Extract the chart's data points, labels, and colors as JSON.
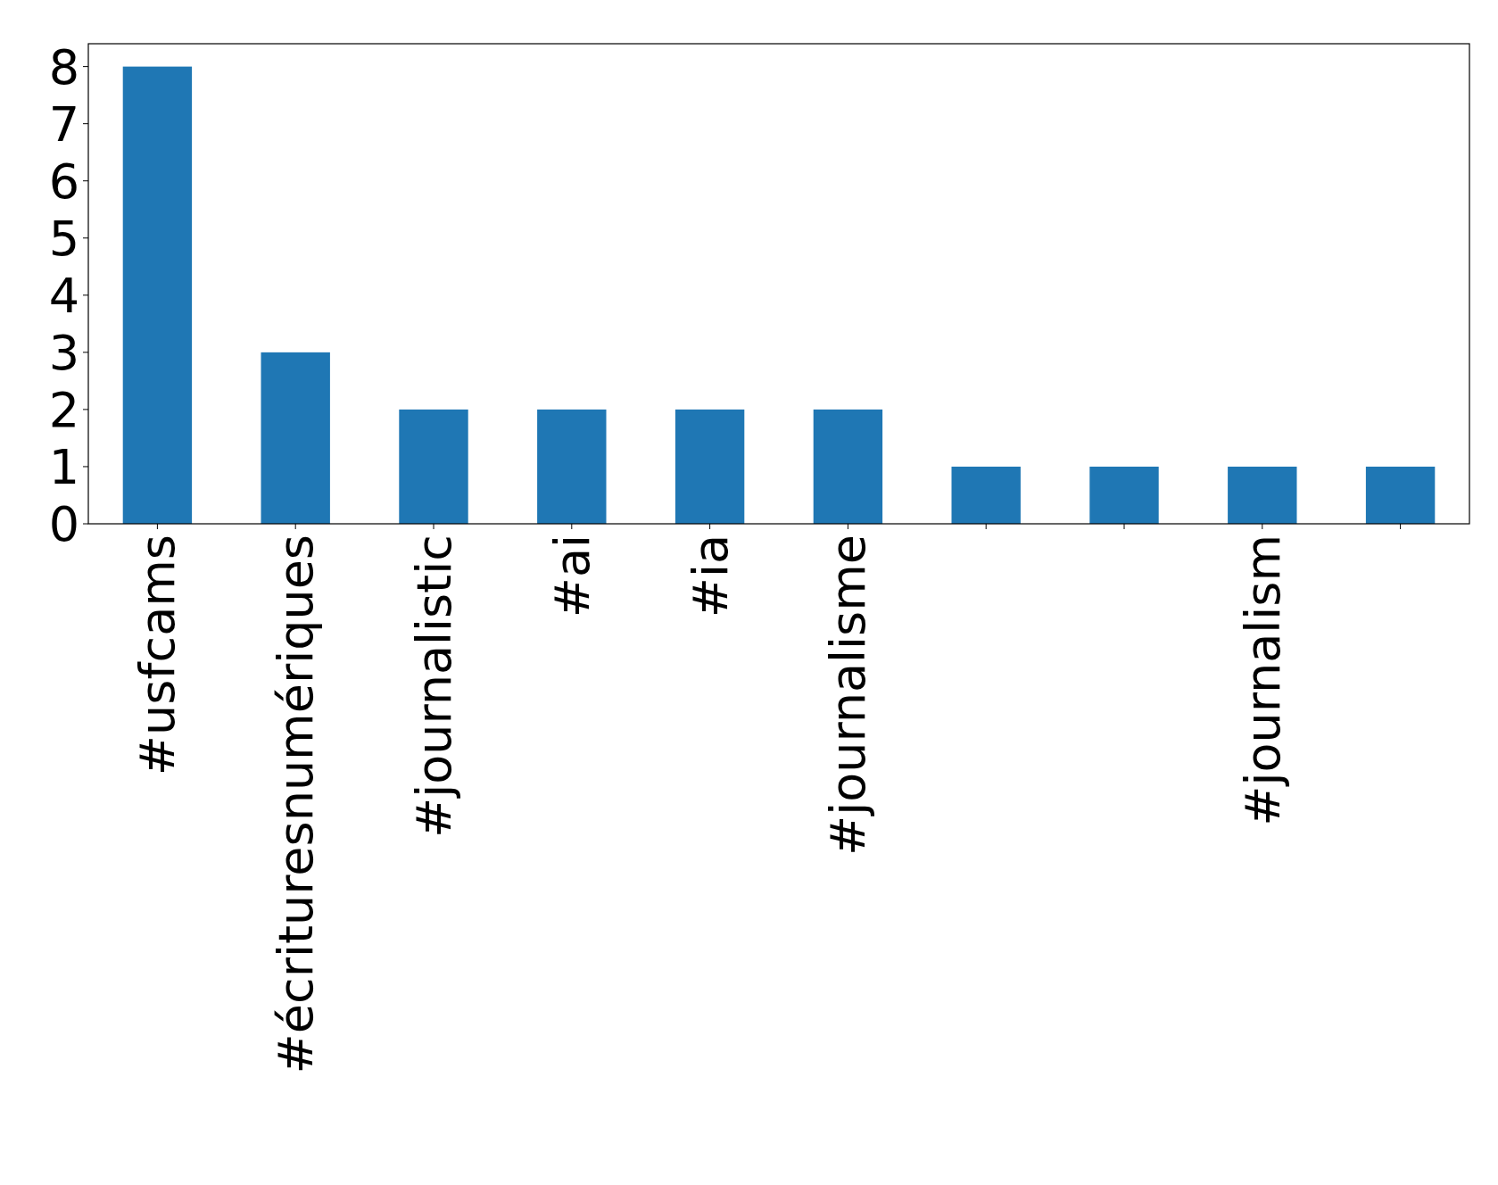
{
  "chart_data": {
    "type": "bar",
    "categories": [
      "#usfcams",
      "#écrituresnumériques",
      "#journalistic",
      "#ai",
      "#ia",
      "#journalisme",
      null,
      null,
      "#journalism",
      null
    ],
    "values": [
      8,
      3,
      2,
      2,
      2,
      2,
      1,
      1,
      1,
      1
    ],
    "color": "#1f77b4",
    "ylim": [
      0,
      8.4
    ],
    "yticks": [
      0,
      1,
      2,
      3,
      4,
      5,
      6,
      7,
      8
    ],
    "grid": false
  }
}
